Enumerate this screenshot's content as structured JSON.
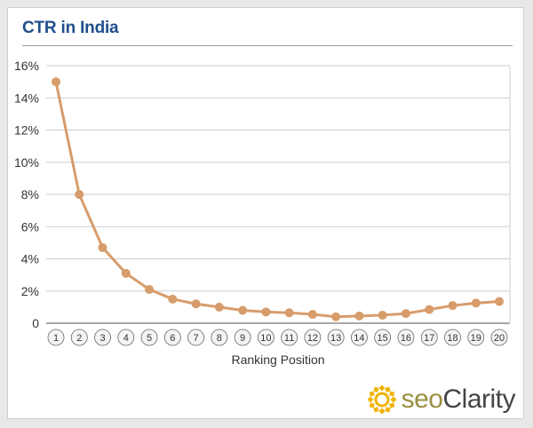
{
  "chart_data": {
    "type": "line",
    "title": "CTR in India",
    "xlabel": "Ranking Position",
    "ylabel": "",
    "ylim": [
      0,
      16
    ],
    "y_ticks": [
      "0",
      "2%",
      "4%",
      "6%",
      "8%",
      "10%",
      "12%",
      "14%",
      "16%"
    ],
    "y_tick_values": [
      0,
      2,
      4,
      6,
      8,
      10,
      12,
      14,
      16
    ],
    "categories": [
      "1",
      "2",
      "3",
      "4",
      "5",
      "6",
      "7",
      "8",
      "9",
      "10",
      "11",
      "12",
      "13",
      "14",
      "15",
      "16",
      "17",
      "18",
      "19",
      "20"
    ],
    "values": [
      15.0,
      8.0,
      4.7,
      3.1,
      2.1,
      1.5,
      1.2,
      1.0,
      0.8,
      0.7,
      0.65,
      0.55,
      0.4,
      0.45,
      0.5,
      0.6,
      0.85,
      1.1,
      1.25,
      1.35
    ],
    "grid": true,
    "legend": "none",
    "line_color": "#d79c6b"
  },
  "logo": {
    "seo": "seo",
    "clarity": "Clarity",
    "mark_color": "#f0b400"
  }
}
